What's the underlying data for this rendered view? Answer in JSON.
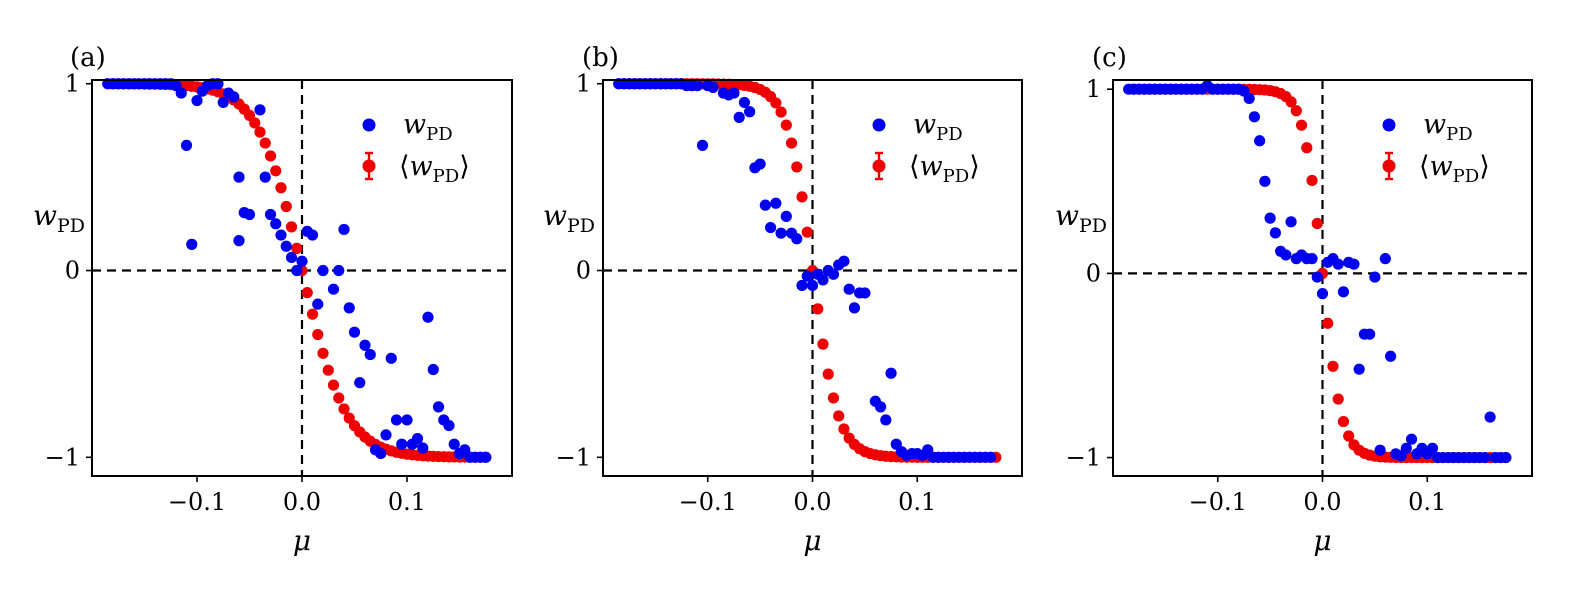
{
  "figure": {
    "ylabel_base": "w",
    "ylabel_sub": "PD",
    "xlabel": "μ",
    "legend_items": [
      {
        "base": "w",
        "sub": "PD",
        "open": "",
        "close": ""
      },
      {
        "base": "w",
        "sub": "PD",
        "open": "⟨",
        "close": "⟩"
      }
    ],
    "colors": {
      "wpd": "#0000ee",
      "mean": "#ee0000"
    }
  },
  "chart_data": [
    {
      "panel_label": "(a)",
      "type": "scatter",
      "xlabel": "μ",
      "ylabel": "w_PD",
      "xlim": [
        -0.2,
        0.2
      ],
      "ylim": [
        -1.1,
        1.02
      ],
      "xticks": [
        {
          "v": -0.1,
          "label": "−0.1"
        },
        {
          "v": 0.0,
          "label": "0.0"
        },
        {
          "v": 0.1,
          "label": "0.1"
        }
      ],
      "yticks": [
        {
          "v": 1,
          "label": "1"
        },
        {
          "v": 0,
          "label": "0"
        },
        {
          "v": -1,
          "label": "−1"
        }
      ],
      "reference_lines": {
        "x": 0,
        "y": 0
      },
      "legend_position": "top-right",
      "mean_center": 0.0,
      "mean_scale": 0.042,
      "series": [
        {
          "name": "w_PD",
          "color": "#0000ee",
          "points": [
            [
              -0.185,
              1
            ],
            [
              -0.18,
              1
            ],
            [
              -0.175,
              1
            ],
            [
              -0.17,
              1
            ],
            [
              -0.165,
              1
            ],
            [
              -0.16,
              1
            ],
            [
              -0.155,
              1
            ],
            [
              -0.15,
              1
            ],
            [
              -0.145,
              1
            ],
            [
              -0.14,
              1
            ],
            [
              -0.135,
              1
            ],
            [
              -0.13,
              1
            ],
            [
              -0.125,
              1
            ],
            [
              -0.12,
              0.99
            ],
            [
              -0.115,
              0.95
            ],
            [
              -0.11,
              0.67
            ],
            [
              -0.105,
              0.14
            ],
            [
              -0.1,
              0.91
            ],
            [
              -0.095,
              0.96
            ],
            [
              -0.09,
              0.99
            ],
            [
              -0.085,
              1
            ],
            [
              -0.08,
              1
            ],
            [
              -0.075,
              0.9
            ],
            [
              -0.07,
              0.95
            ],
            [
              -0.065,
              0.93
            ],
            [
              -0.06,
              0.5
            ],
            [
              -0.055,
              0.31
            ],
            [
              -0.05,
              0.3
            ],
            [
              -0.06,
              0.16
            ],
            [
              -0.04,
              0.86
            ],
            [
              -0.035,
              0.5
            ],
            [
              -0.03,
              0.3
            ],
            [
              -0.025,
              0.25
            ],
            [
              -0.02,
              0.19
            ],
            [
              -0.015,
              0.13
            ],
            [
              -0.01,
              0.07
            ],
            [
              -0.005,
              0
            ],
            [
              0.0,
              0.05
            ],
            [
              0.005,
              0.21
            ],
            [
              0.01,
              0.19
            ],
            [
              0.015,
              -0.18
            ],
            [
              0.02,
              0
            ],
            [
              0.03,
              -0.1
            ],
            [
              0.035,
              0
            ],
            [
              0.04,
              0.22
            ],
            [
              0.045,
              -0.2
            ],
            [
              0.05,
              -0.33
            ],
            [
              0.055,
              -0.6
            ],
            [
              0.06,
              -0.4
            ],
            [
              0.065,
              -0.45
            ],
            [
              0.07,
              -0.96
            ],
            [
              0.075,
              -0.98
            ],
            [
              0.08,
              -0.88
            ],
            [
              0.085,
              -0.47
            ],
            [
              0.09,
              -0.8
            ],
            [
              0.095,
              -0.93
            ],
            [
              0.1,
              -0.8
            ],
            [
              0.105,
              -0.93
            ],
            [
              0.11,
              -0.9
            ],
            [
              0.115,
              -0.95
            ],
            [
              0.12,
              -0.25
            ],
            [
              0.125,
              -0.53
            ],
            [
              0.13,
              -0.73
            ],
            [
              0.135,
              -0.8
            ],
            [
              0.14,
              -0.83
            ],
            [
              0.145,
              -0.93
            ],
            [
              0.15,
              -0.98
            ],
            [
              0.155,
              -0.96
            ],
            [
              0.16,
              -1
            ],
            [
              0.165,
              -1
            ],
            [
              0.17,
              -1
            ],
            [
              0.175,
              -1
            ]
          ]
        },
        {
          "name": "⟨w_PD⟩",
          "color": "#ee0000",
          "x_start": -0.18,
          "x_end": 0.175,
          "n": 72
        }
      ]
    },
    {
      "panel_label": "(b)",
      "type": "scatter",
      "xlabel": "μ",
      "ylabel": "w_PD",
      "xlim": [
        -0.2,
        0.2
      ],
      "ylim": [
        -1.1,
        1.02
      ],
      "xticks": [
        {
          "v": -0.1,
          "label": "−0.1"
        },
        {
          "v": 0.0,
          "label": "0.0"
        },
        {
          "v": 0.1,
          "label": "0.1"
        }
      ],
      "yticks": [
        {
          "v": 1,
          "label": "1"
        },
        {
          "v": 0,
          "label": "0"
        },
        {
          "v": -1,
          "label": "−1"
        }
      ],
      "reference_lines": {
        "x": 0,
        "y": 0
      },
      "legend_position": "top-right",
      "mean_center": 0.0,
      "mean_scale": 0.024,
      "series": [
        {
          "name": "w_PD",
          "color": "#0000ee",
          "points": [
            [
              -0.185,
              1
            ],
            [
              -0.18,
              1
            ],
            [
              -0.175,
              1
            ],
            [
              -0.17,
              1
            ],
            [
              -0.165,
              1
            ],
            [
              -0.16,
              1
            ],
            [
              -0.155,
              1
            ],
            [
              -0.15,
              1
            ],
            [
              -0.145,
              1
            ],
            [
              -0.14,
              1
            ],
            [
              -0.135,
              1
            ],
            [
              -0.13,
              1
            ],
            [
              -0.125,
              1
            ],
            [
              -0.12,
              0.99
            ],
            [
              -0.115,
              0.99
            ],
            [
              -0.11,
              0.99
            ],
            [
              -0.105,
              0.67
            ],
            [
              -0.1,
              0.99
            ],
            [
              -0.095,
              0.98
            ],
            [
              -0.085,
              0.95
            ],
            [
              -0.08,
              0.94
            ],
            [
              -0.075,
              0.95
            ],
            [
              -0.07,
              0.82
            ],
            [
              -0.065,
              0.9
            ],
            [
              -0.06,
              0.85
            ],
            [
              -0.055,
              0.55
            ],
            [
              -0.05,
              0.57
            ],
            [
              -0.045,
              0.35
            ],
            [
              -0.04,
              0.23
            ],
            [
              -0.035,
              0.36
            ],
            [
              -0.03,
              0.2
            ],
            [
              -0.025,
              0.29
            ],
            [
              -0.02,
              0.2
            ],
            [
              -0.015,
              0.17
            ],
            [
              -0.01,
              -0.08
            ],
            [
              -0.005,
              -0.03
            ],
            [
              0.0,
              -0.08
            ],
            [
              0.005,
              -0.02
            ],
            [
              0.01,
              -0.05
            ],
            [
              0.015,
              0
            ],
            [
              0.02,
              -0.02
            ],
            [
              0.025,
              0.03
            ],
            [
              0.03,
              0.05
            ],
            [
              0.035,
              -0.1
            ],
            [
              0.04,
              -0.2
            ],
            [
              0.045,
              -0.12
            ],
            [
              0.05,
              -0.12
            ],
            [
              0.06,
              -0.7
            ],
            [
              0.065,
              -0.73
            ],
            [
              0.07,
              -0.8
            ],
            [
              0.075,
              -0.55
            ],
            [
              0.08,
              -0.93
            ],
            [
              0.085,
              -0.97
            ],
            [
              0.09,
              -0.99
            ],
            [
              0.095,
              -0.98
            ],
            [
              0.1,
              -0.98
            ],
            [
              0.105,
              -0.99
            ],
            [
              0.11,
              -0.96
            ],
            [
              0.115,
              -1
            ],
            [
              0.12,
              -1
            ],
            [
              0.125,
              -1
            ],
            [
              0.13,
              -1
            ],
            [
              0.135,
              -1
            ],
            [
              0.14,
              -1
            ],
            [
              0.145,
              -1
            ],
            [
              0.15,
              -1
            ],
            [
              0.155,
              -1
            ],
            [
              0.16,
              -1
            ],
            [
              0.165,
              -1
            ],
            [
              0.17,
              -1
            ]
          ]
        },
        {
          "name": "⟨w_PD⟩",
          "color": "#ee0000",
          "x_start": -0.18,
          "x_end": 0.175,
          "n": 72
        }
      ]
    },
    {
      "panel_label": "(c)",
      "type": "scatter",
      "xlabel": "μ",
      "ylabel": "w_PD",
      "xlim": [
        -0.2,
        0.2
      ],
      "ylim": [
        -1.1,
        1.05
      ],
      "xticks": [
        {
          "v": -0.1,
          "label": "−0.1"
        },
        {
          "v": 0.0,
          "label": "0.0"
        },
        {
          "v": 0.1,
          "label": "0.1"
        }
      ],
      "yticks": [
        {
          "v": 1,
          "label": "1"
        },
        {
          "v": 0,
          "label": "0"
        },
        {
          "v": -1,
          "label": "−1"
        }
      ],
      "reference_lines": {
        "x": 0,
        "y": 0
      },
      "legend_position": "top-right",
      "mean_center": 0.0,
      "mean_scale": 0.018,
      "series": [
        {
          "name": "w_PD",
          "color": "#0000ee",
          "points": [
            [
              -0.185,
              1
            ],
            [
              -0.18,
              1
            ],
            [
              -0.175,
              1
            ],
            [
              -0.17,
              1
            ],
            [
              -0.165,
              1
            ],
            [
              -0.16,
              1
            ],
            [
              -0.155,
              1
            ],
            [
              -0.15,
              1
            ],
            [
              -0.145,
              1
            ],
            [
              -0.14,
              1
            ],
            [
              -0.135,
              1
            ],
            [
              -0.13,
              1
            ],
            [
              -0.125,
              1
            ],
            [
              -0.12,
              1
            ],
            [
              -0.115,
              1
            ],
            [
              -0.11,
              1.02
            ],
            [
              -0.105,
              1
            ],
            [
              -0.1,
              1
            ],
            [
              -0.095,
              1
            ],
            [
              -0.09,
              1
            ],
            [
              -0.085,
              1
            ],
            [
              -0.08,
              1
            ],
            [
              -0.075,
              0.99
            ],
            [
              -0.07,
              0.95
            ],
            [
              -0.065,
              0.85
            ],
            [
              -0.06,
              0.72
            ],
            [
              -0.055,
              0.5
            ],
            [
              -0.05,
              0.3
            ],
            [
              -0.045,
              0.22
            ],
            [
              -0.04,
              0.12
            ],
            [
              -0.035,
              0.1
            ],
            [
              -0.03,
              0.28
            ],
            [
              -0.025,
              0.08
            ],
            [
              -0.02,
              0.1
            ],
            [
              -0.015,
              0.08
            ],
            [
              -0.01,
              0.08
            ],
            [
              -0.005,
              -0.02
            ],
            [
              0.0,
              -0.11
            ],
            [
              0.005,
              0.06
            ],
            [
              0.01,
              0.08
            ],
            [
              0.015,
              0.05
            ],
            [
              0.02,
              -0.1
            ],
            [
              0.025,
              0.06
            ],
            [
              0.03,
              0.05
            ],
            [
              0.035,
              -0.52
            ],
            [
              0.04,
              -0.33
            ],
            [
              0.045,
              -0.33
            ],
            [
              0.05,
              -0.02
            ],
            [
              0.055,
              -0.96
            ],
            [
              0.06,
              0.08
            ],
            [
              0.065,
              -0.45
            ],
            [
              0.07,
              -0.98
            ],
            [
              0.075,
              -0.99
            ],
            [
              0.08,
              -0.95
            ],
            [
              0.085,
              -0.9
            ],
            [
              0.09,
              -0.98
            ],
            [
              0.095,
              -0.95
            ],
            [
              0.1,
              -0.98
            ],
            [
              0.105,
              -0.95
            ],
            [
              0.11,
              -1
            ],
            [
              0.115,
              -1
            ],
            [
              0.12,
              -1
            ],
            [
              0.125,
              -1
            ],
            [
              0.13,
              -1
            ],
            [
              0.135,
              -1
            ],
            [
              0.14,
              -1
            ],
            [
              0.145,
              -1
            ],
            [
              0.15,
              -1
            ],
            [
              0.155,
              -1
            ],
            [
              0.16,
              -0.78
            ],
            [
              0.165,
              -1
            ],
            [
              0.17,
              -1
            ],
            [
              0.175,
              -1
            ]
          ]
        },
        {
          "name": "⟨w_PD⟩",
          "color": "#ee0000",
          "x_start": -0.18,
          "x_end": 0.175,
          "n": 72
        }
      ]
    }
  ]
}
